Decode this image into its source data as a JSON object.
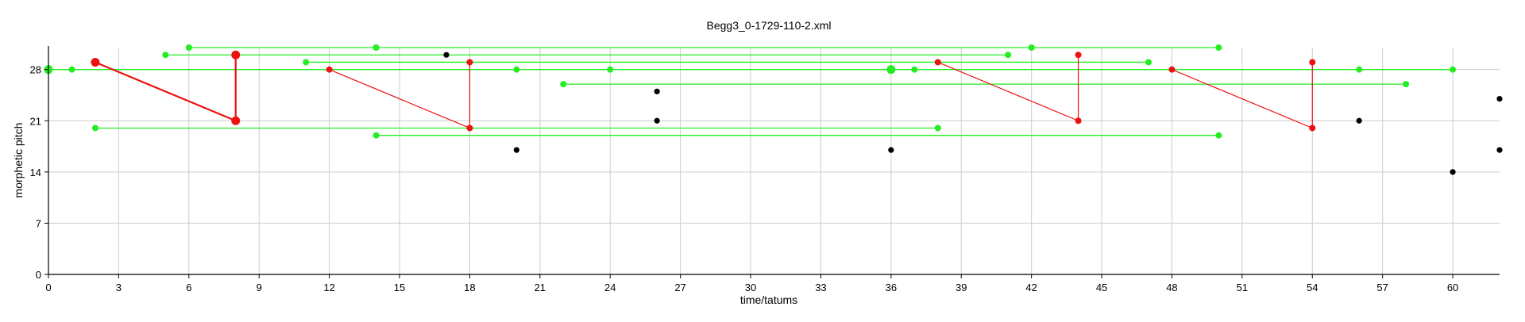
{
  "chart_data": {
    "type": "scatter",
    "title": "Begg3_0-1729-110-2.xml",
    "xlabel": "time/tatums",
    "ylabel": "morphetic pitch",
    "xlim": [
      0,
      62
    ],
    "ylim": [
      0,
      31
    ],
    "xticks": [
      0,
      3,
      6,
      9,
      12,
      15,
      18,
      21,
      24,
      27,
      30,
      33,
      36,
      39,
      42,
      45,
      48,
      51,
      54,
      57,
      60
    ],
    "yticks": [
      0,
      7,
      14,
      21,
      28
    ],
    "grid": true,
    "colors": {
      "green": "#22ee22",
      "red": "#ee1111",
      "black": "#000000",
      "grid": "#cccccc"
    },
    "green_segments": [
      {
        "x1": 6,
        "x2": 50,
        "y": 31
      },
      {
        "x1": 5,
        "x2": 41,
        "y": 30
      },
      {
        "x1": 11,
        "x2": 47,
        "y": 29
      },
      {
        "x1": 0,
        "x2": 60,
        "y": 28
      },
      {
        "x1": 22,
        "x2": 58,
        "y": 26
      },
      {
        "x1": 2,
        "x2": 38,
        "y": 20
      },
      {
        "x1": 14,
        "x2": 50,
        "y": 19
      }
    ],
    "green_points": [
      {
        "x": 0,
        "y": 28,
        "big": true
      },
      {
        "x": 1,
        "y": 28
      },
      {
        "x": 2,
        "y": 20
      },
      {
        "x": 5,
        "y": 30
      },
      {
        "x": 6,
        "y": 31
      },
      {
        "x": 11,
        "y": 29
      },
      {
        "x": 14,
        "y": 31
      },
      {
        "x": 14,
        "y": 19
      },
      {
        "x": 20,
        "y": 28
      },
      {
        "x": 22,
        "y": 26
      },
      {
        "x": 24,
        "y": 28
      },
      {
        "x": 36,
        "y": 28,
        "big": true
      },
      {
        "x": 37,
        "y": 28
      },
      {
        "x": 38,
        "y": 20
      },
      {
        "x": 41,
        "y": 30
      },
      {
        "x": 42,
        "y": 31
      },
      {
        "x": 47,
        "y": 29
      },
      {
        "x": 50,
        "y": 31
      },
      {
        "x": 50,
        "y": 19
      },
      {
        "x": 56,
        "y": 28
      },
      {
        "x": 58,
        "y": 26
      },
      {
        "x": 60,
        "y": 28
      }
    ],
    "red_segments": [
      {
        "x1": 2,
        "y1": 29,
        "x2": 8,
        "y2": 21,
        "bold": true
      },
      {
        "x1": 8,
        "y1": 30,
        "x2": 8,
        "y2": 21,
        "bold": true
      },
      {
        "x1": 12,
        "y1": 28,
        "x2": 18,
        "y2": 20
      },
      {
        "x1": 18,
        "y1": 29,
        "x2": 18,
        "y2": 20
      },
      {
        "x1": 38,
        "y1": 29,
        "x2": 44,
        "y2": 21
      },
      {
        "x1": 44,
        "y1": 30,
        "x2": 44,
        "y2": 21
      },
      {
        "x1": 48,
        "y1": 28,
        "x2": 54,
        "y2": 20
      },
      {
        "x1": 54,
        "y1": 29,
        "x2": 54,
        "y2": 20
      }
    ],
    "red_points": [
      {
        "x": 2,
        "y": 29,
        "big": true
      },
      {
        "x": 8,
        "y": 30,
        "big": true
      },
      {
        "x": 8,
        "y": 21,
        "big": true
      },
      {
        "x": 12,
        "y": 28
      },
      {
        "x": 18,
        "y": 29
      },
      {
        "x": 18,
        "y": 20
      },
      {
        "x": 38,
        "y": 29
      },
      {
        "x": 44,
        "y": 30
      },
      {
        "x": 44,
        "y": 21
      },
      {
        "x": 48,
        "y": 28
      },
      {
        "x": 54,
        "y": 29
      },
      {
        "x": 54,
        "y": 20
      }
    ],
    "black_points": [
      {
        "x": 17,
        "y": 30
      },
      {
        "x": 20,
        "y": 17
      },
      {
        "x": 26,
        "y": 25
      },
      {
        "x": 26,
        "y": 21
      },
      {
        "x": 36,
        "y": 17
      },
      {
        "x": 56,
        "y": 21
      },
      {
        "x": 60,
        "y": 14
      },
      {
        "x": 62,
        "y": 24
      },
      {
        "x": 62,
        "y": 17
      }
    ]
  }
}
